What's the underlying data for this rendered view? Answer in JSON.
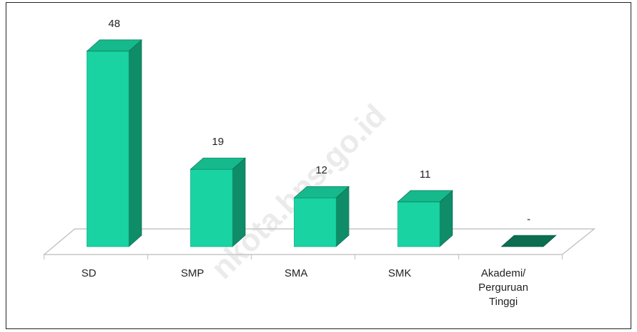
{
  "chart_data": {
    "type": "bar3d",
    "categories": [
      "SD",
      "SMP",
      "SMA",
      "SMK",
      "Akademi/ Perguruan Tinggi"
    ],
    "values": [
      48,
      19,
      12,
      11,
      0
    ],
    "value_labels": [
      "48",
      "19",
      "12",
      "11",
      "-"
    ],
    "color": "#19d3a2",
    "side_color": "#0f8c68",
    "top_color": "#15b98c"
  },
  "watermark": "nkota.bps.go.id"
}
